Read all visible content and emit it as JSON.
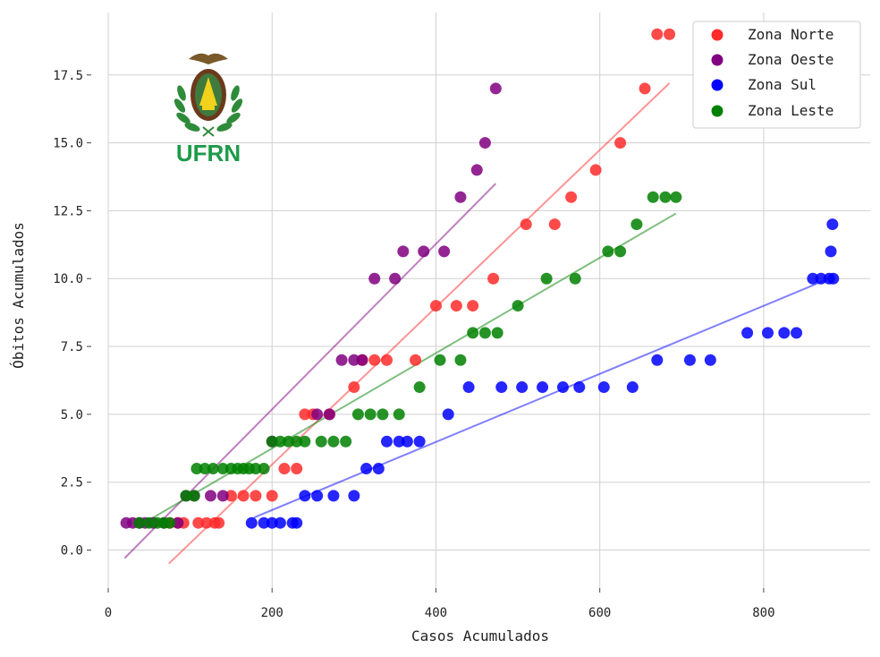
{
  "chart_data": {
    "type": "scatter",
    "xlabel": "Casos Acumulados",
    "ylabel": "Óbitos Acumulados",
    "xlim": [
      0,
      930
    ],
    "ylim": [
      -1.4,
      19.8
    ],
    "xticks": [
      0,
      200,
      400,
      600,
      800
    ],
    "yticks": [
      0.0,
      2.5,
      5.0,
      7.5,
      10.0,
      12.5,
      15.0,
      17.5
    ],
    "xtick_labels": [
      "0",
      "200",
      "400",
      "600",
      "800"
    ],
    "ytick_labels": [
      "0.0",
      "2.5",
      "5.0",
      "7.5",
      "10.0",
      "12.5",
      "15.0",
      "17.5"
    ],
    "grid": true,
    "legend_position": "top-right",
    "logo_text": "UFRN",
    "series": [
      {
        "name": "Zona Norte",
        "color": "#ff2a2a",
        "trend": {
          "x": [
            74,
            685
          ],
          "y": [
            -0.5,
            17.2
          ]
        },
        "points": [
          [
            75,
            1
          ],
          [
            85,
            1
          ],
          [
            92,
            1
          ],
          [
            110,
            1
          ],
          [
            120,
            1
          ],
          [
            130,
            1
          ],
          [
            135,
            1
          ],
          [
            150,
            2
          ],
          [
            165,
            2
          ],
          [
            180,
            2
          ],
          [
            200,
            2
          ],
          [
            215,
            3
          ],
          [
            230,
            3
          ],
          [
            240,
            5
          ],
          [
            250,
            5
          ],
          [
            270,
            5
          ],
          [
            300,
            6
          ],
          [
            310,
            7
          ],
          [
            325,
            7
          ],
          [
            340,
            7
          ],
          [
            375,
            7
          ],
          [
            400,
            9
          ],
          [
            425,
            9
          ],
          [
            445,
            9
          ],
          [
            470,
            10
          ],
          [
            510,
            12
          ],
          [
            545,
            12
          ],
          [
            565,
            13
          ],
          [
            595,
            14
          ],
          [
            625,
            15
          ],
          [
            655,
            17
          ],
          [
            670,
            19
          ],
          [
            685,
            19
          ]
        ]
      },
      {
        "name": "Zona Oeste",
        "color": "#800080",
        "trend": {
          "x": [
            20,
            473
          ],
          "y": [
            -0.3,
            13.5
          ]
        },
        "points": [
          [
            22,
            1
          ],
          [
            30,
            1
          ],
          [
            38,
            1
          ],
          [
            45,
            1
          ],
          [
            55,
            1
          ],
          [
            68,
            1
          ],
          [
            85,
            1
          ],
          [
            95,
            2
          ],
          [
            105,
            2
          ],
          [
            125,
            2
          ],
          [
            140,
            2
          ],
          [
            200,
            4
          ],
          [
            255,
            5
          ],
          [
            270,
            5
          ],
          [
            285,
            7
          ],
          [
            300,
            7
          ],
          [
            310,
            7
          ],
          [
            325,
            10
          ],
          [
            350,
            10
          ],
          [
            360,
            11
          ],
          [
            385,
            11
          ],
          [
            410,
            11
          ],
          [
            430,
            13
          ],
          [
            450,
            14
          ],
          [
            460,
            15
          ],
          [
            473,
            17
          ]
        ]
      },
      {
        "name": "Zona Sul",
        "color": "#0000ff",
        "trend": {
          "x": [
            178,
            880
          ],
          "y": [
            1.2,
            10.0
          ]
        },
        "points": [
          [
            175,
            1
          ],
          [
            190,
            1
          ],
          [
            200,
            1
          ],
          [
            210,
            1
          ],
          [
            225,
            1
          ],
          [
            230,
            1
          ],
          [
            240,
            2
          ],
          [
            255,
            2
          ],
          [
            275,
            2
          ],
          [
            300,
            2
          ],
          [
            315,
            3
          ],
          [
            330,
            3
          ],
          [
            340,
            4
          ],
          [
            355,
            4
          ],
          [
            365,
            4
          ],
          [
            380,
            4
          ],
          [
            415,
            5
          ],
          [
            440,
            6
          ],
          [
            480,
            6
          ],
          [
            505,
            6
          ],
          [
            530,
            6
          ],
          [
            555,
            6
          ],
          [
            575,
            6
          ],
          [
            605,
            6
          ],
          [
            640,
            6
          ],
          [
            670,
            7
          ],
          [
            710,
            7
          ],
          [
            735,
            7
          ],
          [
            780,
            8
          ],
          [
            805,
            8
          ],
          [
            825,
            8
          ],
          [
            840,
            8
          ],
          [
            860,
            10
          ],
          [
            870,
            10
          ],
          [
            880,
            10
          ],
          [
            885,
            10
          ],
          [
            882,
            11
          ],
          [
            884,
            12
          ]
        ]
      },
      {
        "name": "Zona Leste",
        "color": "#008000",
        "trend": {
          "x": [
            38,
            693
          ],
          "y": [
            0.9,
            12.4
          ]
        },
        "points": [
          [
            38,
            1
          ],
          [
            50,
            1
          ],
          [
            60,
            1
          ],
          [
            68,
            1
          ],
          [
            75,
            1
          ],
          [
            95,
            2
          ],
          [
            105,
            2
          ],
          [
            108,
            3
          ],
          [
            118,
            3
          ],
          [
            128,
            3
          ],
          [
            140,
            3
          ],
          [
            150,
            3
          ],
          [
            158,
            3
          ],
          [
            165,
            3
          ],
          [
            172,
            3
          ],
          [
            180,
            3
          ],
          [
            190,
            3
          ],
          [
            200,
            4
          ],
          [
            210,
            4
          ],
          [
            220,
            4
          ],
          [
            230,
            4
          ],
          [
            240,
            4
          ],
          [
            260,
            4
          ],
          [
            275,
            4
          ],
          [
            290,
            4
          ],
          [
            305,
            5
          ],
          [
            320,
            5
          ],
          [
            335,
            5
          ],
          [
            355,
            5
          ],
          [
            380,
            6
          ],
          [
            405,
            7
          ],
          [
            430,
            7
          ],
          [
            445,
            8
          ],
          [
            460,
            8
          ],
          [
            475,
            8
          ],
          [
            500,
            9
          ],
          [
            535,
            10
          ],
          [
            570,
            10
          ],
          [
            610,
            11
          ],
          [
            625,
            11
          ],
          [
            645,
            12
          ],
          [
            665,
            13
          ],
          [
            680,
            13
          ],
          [
            693,
            13
          ]
        ]
      }
    ]
  }
}
